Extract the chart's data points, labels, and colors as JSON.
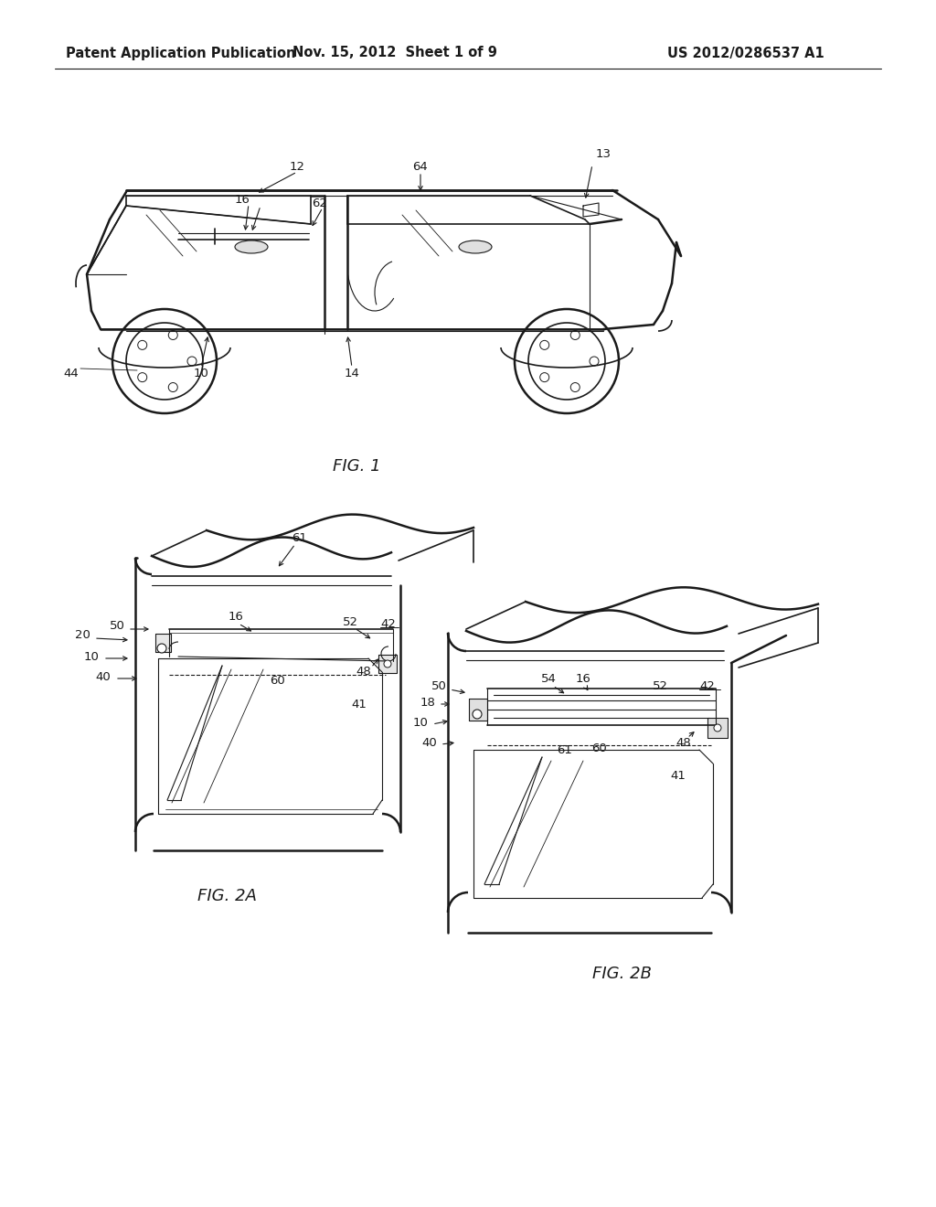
{
  "background_color": "#ffffff",
  "header_left": "Patent Application Publication",
  "header_center": "Nov. 15, 2012  Sheet 1 of 9",
  "header_right": "US 2012/0286537 A1",
  "header_fontsize": 10.5,
  "fig1_caption": "FIG. 1",
  "fig2a_caption": "FIG. 2A",
  "fig2b_caption": "FIG. 2B",
  "caption_fontsize": 13,
  "label_fontsize": 9.5,
  "line_color": "#1a1a1a"
}
